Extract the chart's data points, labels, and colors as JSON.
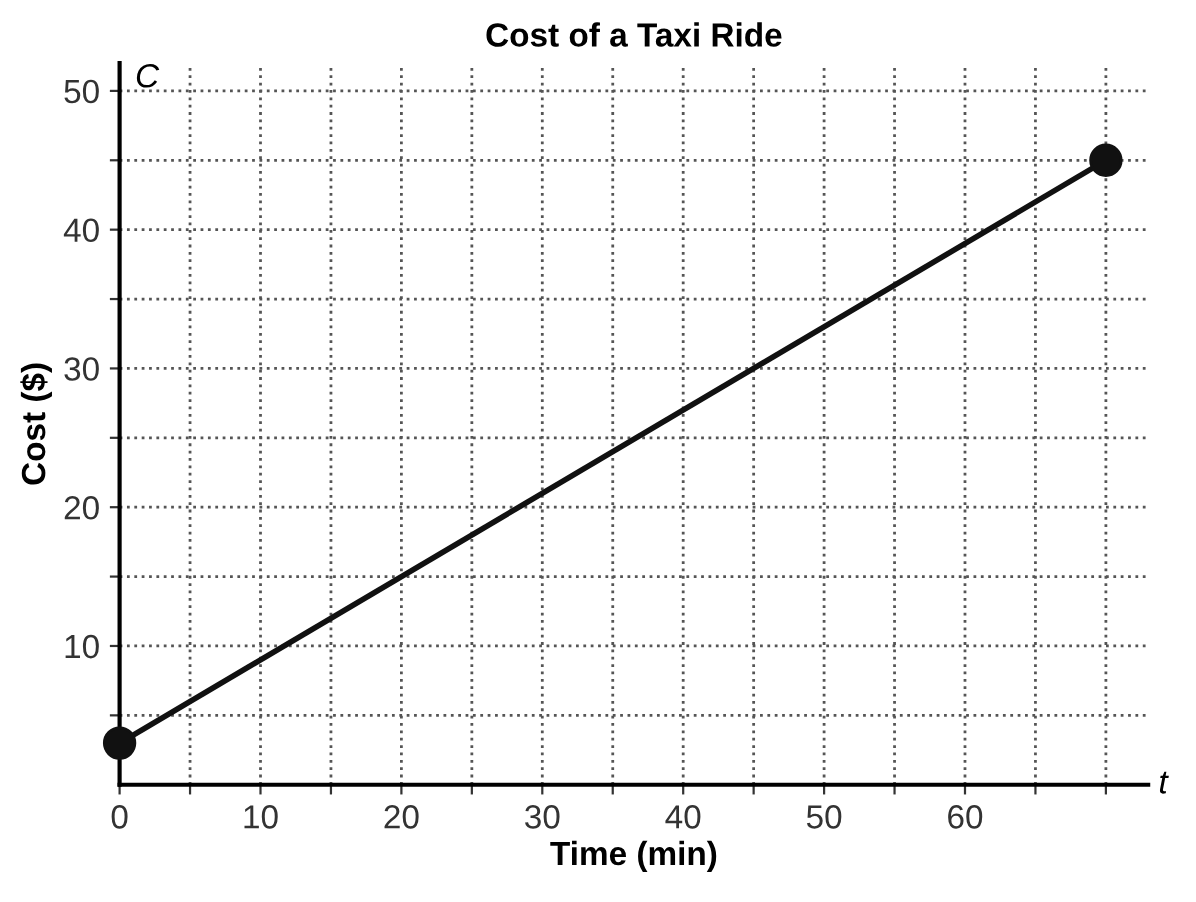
{
  "chart_data": {
    "type": "line",
    "title": "Cost of a Taxi Ride",
    "xlabel": "Time (min)",
    "ylabel": "Cost ($)",
    "annotations": [
      "C",
      "t"
    ],
    "x": [
      0,
      70
    ],
    "marker": "circle",
    "series": [
      {
        "color": "#111111",
        "values": [
          3,
          45
        ]
      }
    ],
    "xlim": [
      0,
      73
    ],
    "ylim": [
      0,
      52
    ],
    "xticks": [
      0,
      {
        "value": 5,
        "label": null
      },
      10,
      {
        "value": 15,
        "label": null
      },
      20,
      {
        "value": 25,
        "label": null
      },
      30,
      {
        "value": 35,
        "label": null
      },
      40,
      {
        "value": 45,
        "label": null
      },
      50,
      {
        "value": 55,
        "label": null
      },
      60,
      {
        "value": 65,
        "label": null
      },
      {
        "value": 70,
        "label": null
      }
    ],
    "yticks": [
      {
        "value": 5,
        "label": null
      },
      10,
      {
        "value": 15,
        "label": null
      },
      20,
      {
        "value": 25,
        "label": null
      },
      30,
      {
        "value": 35,
        "label": null
      },
      40,
      {
        "value": 45,
        "label": null
      },
      50
    ],
    "grid": true,
    "legend": false
  }
}
